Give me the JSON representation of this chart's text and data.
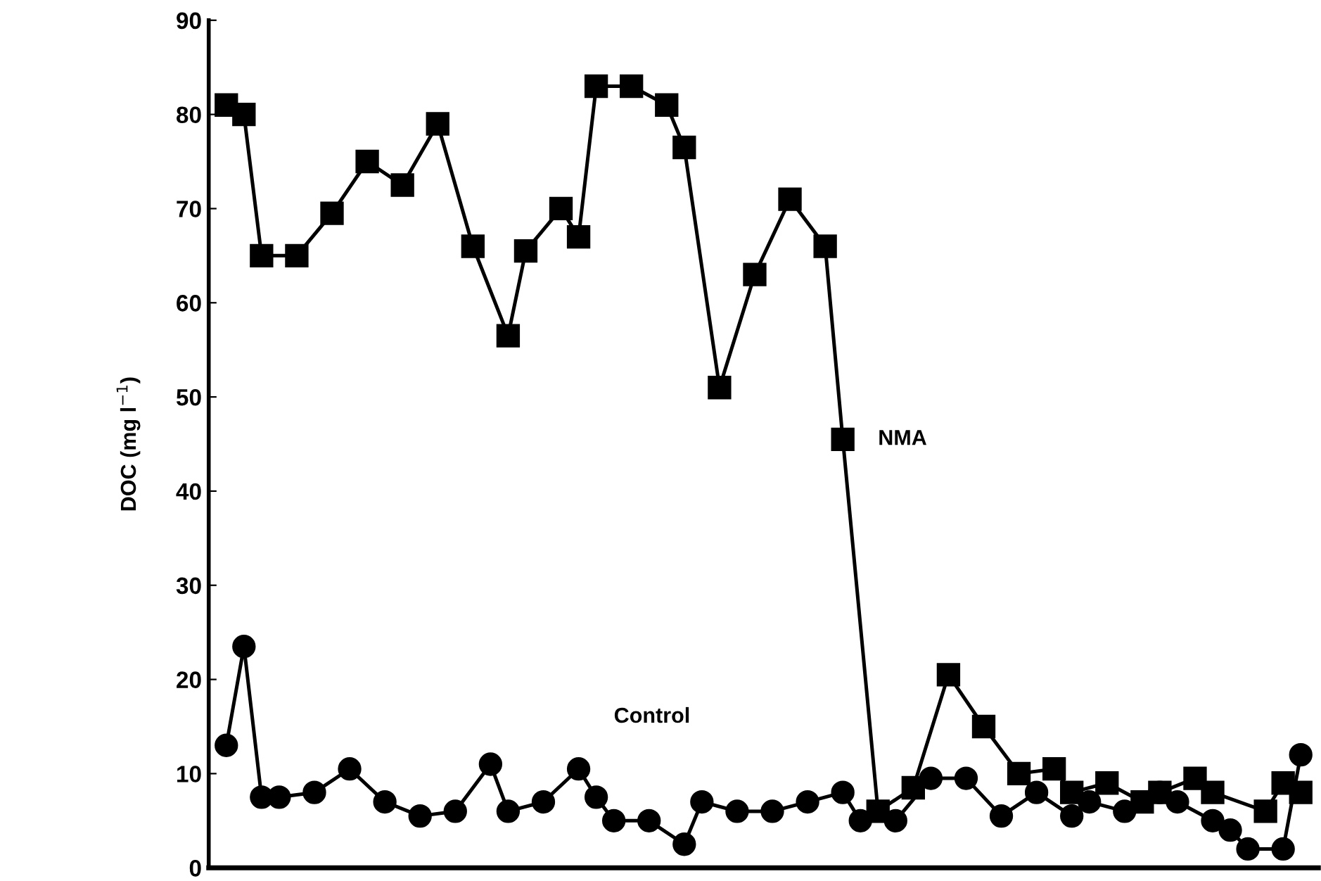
{
  "chart_data": {
    "type": "line",
    "ylabel": "DOC (mg l$^{−1}$)",
    "categories": [
      null,
      null,
      null,
      null,
      null,
      null,
      null,
      null,
      null,
      null,
      null,
      null,
      null,
      null,
      null,
      null,
      null,
      null,
      null,
      null,
      null,
      null,
      null,
      null,
      null,
      null,
      null,
      null,
      null,
      null,
      null,
      null,
      null,
      null,
      null,
      null,
      null,
      null,
      null,
      null,
      null,
      null,
      null,
      null,
      null,
      null,
      null,
      null,
      null,
      null,
      null,
      null,
      null,
      null,
      null,
      null,
      null,
      null,
      null,
      null,
      null,
      null
    ],
    "series": [
      {
        "name": "NMA",
        "color": "#000000",
        "marker": "square",
        "values": [
          81,
          80,
          65,
          null,
          65,
          null,
          69.5,
          null,
          75,
          null,
          72.5,
          null,
          79,
          null,
          66,
          null,
          56.5,
          65.5,
          null,
          70,
          67,
          83,
          null,
          83,
          null,
          81,
          76.5,
          null,
          51,
          null,
          63,
          null,
          71,
          null,
          66,
          45.5,
          null,
          6,
          null,
          8.5,
          null,
          20.5,
          null,
          15,
          null,
          10,
          null,
          10.5,
          8,
          null,
          9,
          null,
          7,
          8,
          null,
          9.5,
          8,
          null,
          null,
          6,
          9,
          8
        ]
      },
      {
        "name": "Control",
        "color": "#000000",
        "marker": "circle",
        "values": [
          13,
          23.5,
          7.5,
          7.5,
          null,
          8,
          null,
          10.5,
          null,
          7,
          null,
          5.5,
          null,
          6,
          null,
          11,
          6,
          null,
          7,
          null,
          10.5,
          7.5,
          5,
          null,
          5,
          null,
          2.5,
          7,
          null,
          6,
          null,
          6,
          null,
          7,
          null,
          8,
          5,
          null,
          5,
          null,
          9.5,
          null,
          9.5,
          null,
          5.5,
          null,
          8,
          null,
          5.5,
          7,
          null,
          6,
          null,
          8,
          7,
          null,
          5,
          4,
          2,
          null,
          2,
          12
        ]
      }
    ],
    "ylim": [
      0,
      90
    ],
    "yticks": [
      0,
      10,
      20,
      30,
      40,
      50,
      60,
      70,
      80,
      90
    ],
    "tick_labels": "y",
    "grid": false,
    "legend": false,
    "line_style": "solid"
  }
}
